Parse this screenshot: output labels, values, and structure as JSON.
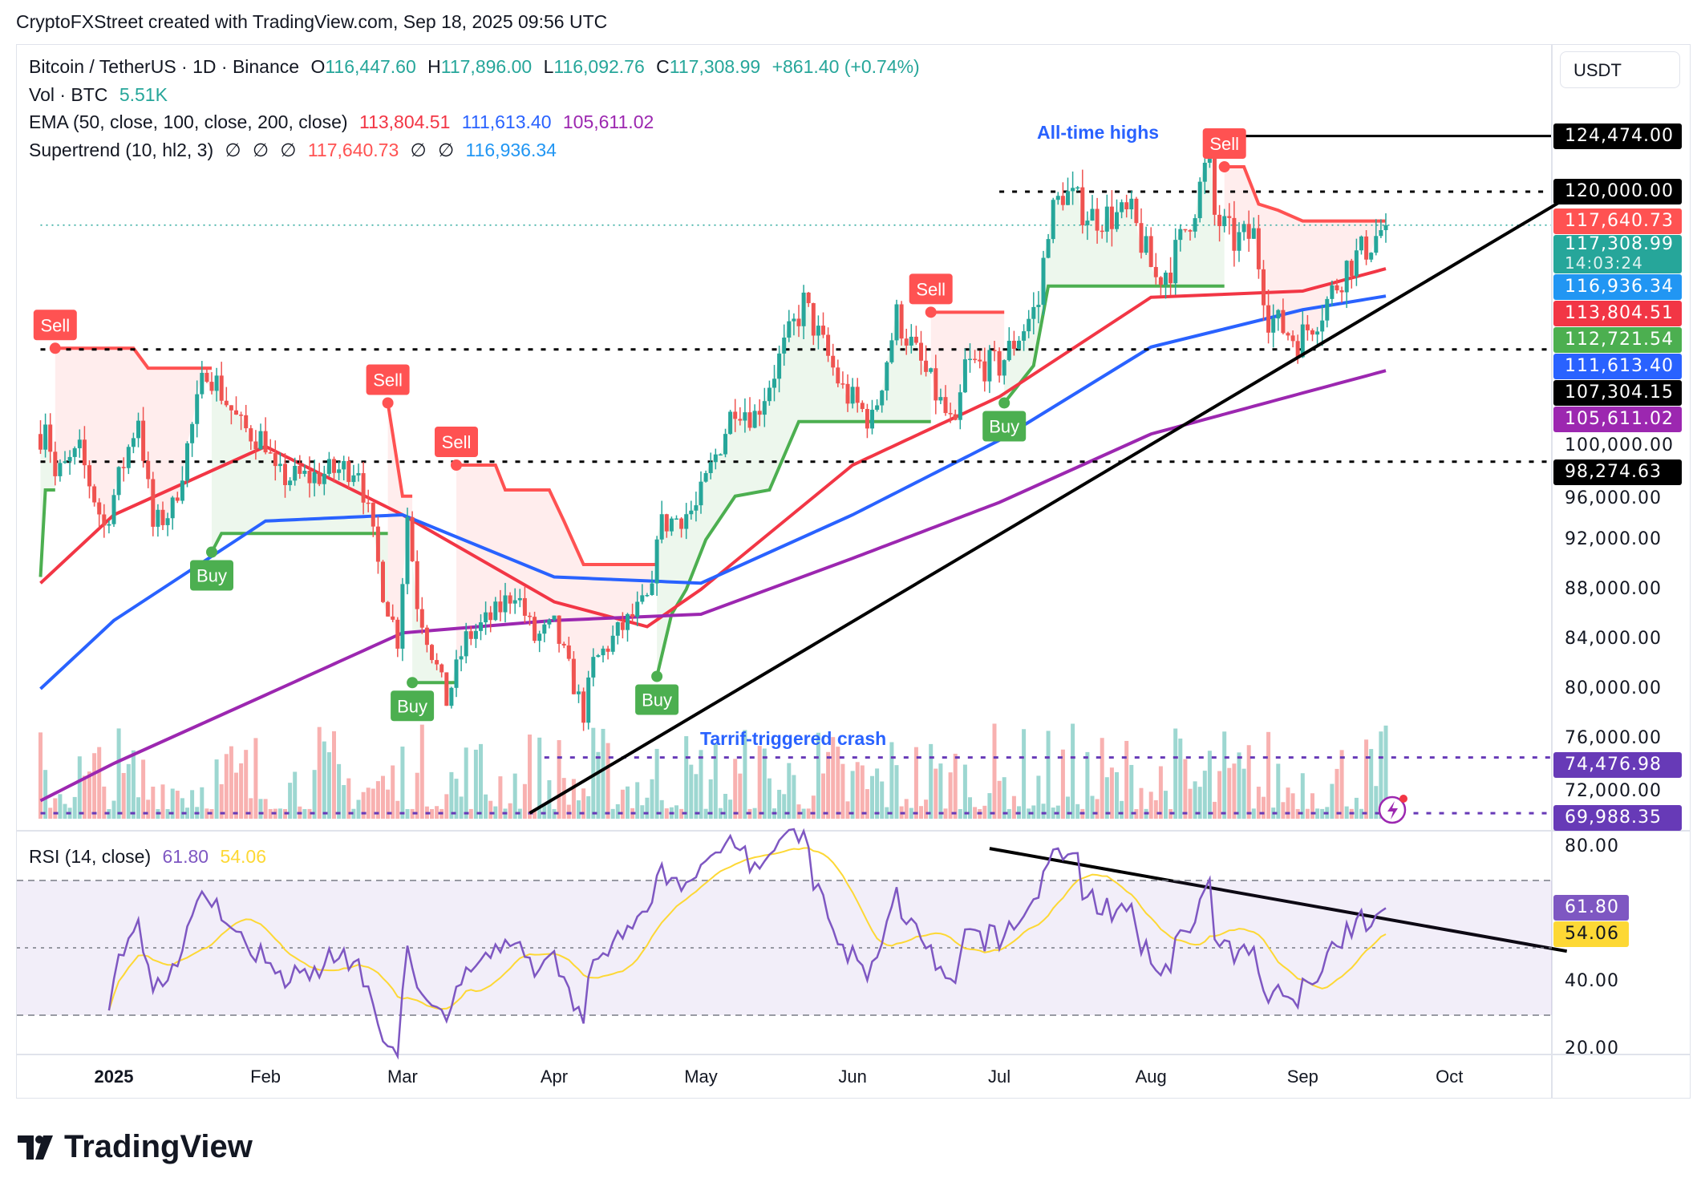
{
  "credit": "CryptoFXStreet created with TradingView.com, Sep 18, 2025 09:56 UTC",
  "legend": {
    "symbol": "Bitcoin / TetherUS · 1D · Binance",
    "o_label": "O",
    "o": "116,447.60",
    "h_label": "H",
    "h": "117,896.00",
    "l_label": "L",
    "l": "116,092.76",
    "c_label": "C",
    "c": "117,308.99",
    "change": "+861.40 (+0.74%)",
    "vol_label": "Vol · BTC",
    "vol": "5.51K",
    "ema_label": "EMA (50, close, 100, close, 200, close)",
    "ema50": "113,804.51",
    "ema100": "111,613.40",
    "ema200": "105,611.02",
    "st_label": "Supertrend (10, hl2, 3)",
    "st_na": "∅",
    "st_down": "117,640.73",
    "st_up": "116,936.34",
    "rsi_label": "RSI (14, close)",
    "rsi": "61.80",
    "rsi_ma": "54.06"
  },
  "currency": "USDT",
  "annotations": {
    "ath": "All-time highs",
    "crash": "Tarrif-triggered crash"
  },
  "colors": {
    "up": "#26a69a",
    "down": "#ef5350",
    "ema50": "#f23645",
    "ema100": "#2962ff",
    "ema200": "#9c27b0",
    "st_up": "#4caf50",
    "st_down": "#ff5252",
    "rsi": "#7e57c2",
    "rsi_ma": "#fdd835",
    "level_purple": "#673ab7"
  },
  "price_axis": {
    "ticks": [
      "100,000.00",
      "96,000.00",
      "92,000.00",
      "88,000.00",
      "84,000.00",
      "80,000.00",
      "76,000.00",
      "72,000.00"
    ],
    "tick_values": [
      100000,
      96000,
      92000,
      88000,
      84000,
      80000,
      76000,
      72000
    ],
    "badges": [
      {
        "text": "124,474.00",
        "value": 124474,
        "bg": "#000000",
        "fg": "#ffffff"
      },
      {
        "text": "120,000.00",
        "value": 120000,
        "bg": "#000000",
        "fg": "#ffffff"
      },
      {
        "text": "117,640.73",
        "value": 117640.73,
        "bg": "#ff5252",
        "fg": "#ffffff"
      },
      {
        "text": "117,308.99",
        "value": 117308.99,
        "bg": "#26a69a",
        "fg": "#ffffff",
        "sub": "14:03:24"
      },
      {
        "text": "116,936.34",
        "value": 116936.34,
        "bg": "#2196f3",
        "fg": "#ffffff"
      },
      {
        "text": "113,804.51",
        "value": 113804.51,
        "bg": "#f23645",
        "fg": "#ffffff"
      },
      {
        "text": "112,721.54",
        "value": 112721.54,
        "bg": "#4caf50",
        "fg": "#ffffff"
      },
      {
        "text": "111,613.40",
        "value": 111613.4,
        "bg": "#2962ff",
        "fg": "#ffffff"
      },
      {
        "text": "107,304.15",
        "value": 107304.15,
        "bg": "#000000",
        "fg": "#ffffff"
      },
      {
        "text": "105,611.02",
        "value": 105611.02,
        "bg": "#9c27b0",
        "fg": "#ffffff"
      },
      {
        "text": "98,274.63",
        "value": 98274.63,
        "bg": "#000000",
        "fg": "#ffffff"
      },
      {
        "text": "74,476.98",
        "value": 74476.98,
        "bg": "#673ab7",
        "fg": "#ffffff"
      },
      {
        "text": "69,988.35",
        "value": 69988.35,
        "bg": "#673ab7",
        "fg": "#ffffff"
      }
    ]
  },
  "rsi_axis": {
    "ticks": [
      "80.00",
      "40.00",
      "20.00"
    ],
    "tick_values": [
      80,
      40,
      20
    ]
  },
  "time_axis": [
    {
      "text": "2025",
      "date": "2025-01-01",
      "bold": true
    },
    {
      "text": "Feb",
      "date": "2025-02-01"
    },
    {
      "text": "Mar",
      "date": "2025-03-01"
    },
    {
      "text": "Apr",
      "date": "2025-04-01"
    },
    {
      "text": "May",
      "date": "2025-05-01"
    },
    {
      "text": "Jun",
      "date": "2025-06-01"
    },
    {
      "text": "Jul",
      "date": "2025-07-01"
    },
    {
      "text": "Aug",
      "date": "2025-08-01"
    },
    {
      "text": "Sep",
      "date": "2025-09-01"
    },
    {
      "text": "Oct",
      "date": "2025-10-01"
    }
  ],
  "logo": "TradingView",
  "chart_data": {
    "type": "candlestick",
    "symbol": "BTCUSDT",
    "interval": "1D",
    "ylim": [
      68000,
      131000
    ],
    "rsi_ylim": [
      17,
      85
    ],
    "rsi_bands": [
      70,
      30
    ],
    "close_keypoints": [
      [
        "2024-12-17",
        100500
      ],
      [
        "2024-12-18",
        102000
      ],
      [
        "2024-12-20",
        97000
      ],
      [
        "2024-12-25",
        99000
      ],
      [
        "2024-12-30",
        93000
      ],
      [
        "2025-01-06",
        102000
      ],
      [
        "2025-01-09",
        93000
      ],
      [
        "2025-01-13",
        94500
      ],
      [
        "2025-01-20",
        106000
      ],
      [
        "2025-01-27",
        101000
      ],
      [
        "2025-02-01",
        100000
      ],
      [
        "2025-02-03",
        97000
      ],
      [
        "2025-02-10",
        97000
      ],
      [
        "2025-02-20",
        98000
      ],
      [
        "2025-02-25",
        88000
      ],
      [
        "2025-02-28",
        84000
      ],
      [
        "2025-03-02",
        94000
      ],
      [
        "2025-03-04",
        87000
      ],
      [
        "2025-03-10",
        79000
      ],
      [
        "2025-03-14",
        84000
      ],
      [
        "2025-03-20",
        86000
      ],
      [
        "2025-03-24",
        88000
      ],
      [
        "2025-03-28",
        84000
      ],
      [
        "2025-04-01",
        85000
      ],
      [
        "2025-04-07",
        78000
      ],
      [
        "2025-04-09",
        82000
      ],
      [
        "2025-04-14",
        84500
      ],
      [
        "2025-04-21",
        87500
      ],
      [
        "2025-04-22",
        93000
      ],
      [
        "2025-04-30",
        94500
      ],
      [
        "2025-05-08",
        103000
      ],
      [
        "2025-05-12",
        102000
      ],
      [
        "2025-05-22",
        111000
      ],
      [
        "2025-05-30",
        104000
      ],
      [
        "2025-06-05",
        101500
      ],
      [
        "2025-06-10",
        110000
      ],
      [
        "2025-06-17",
        104500
      ],
      [
        "2025-06-22",
        100500
      ],
      [
        "2025-06-24",
        106000
      ],
      [
        "2025-07-01",
        106000
      ],
      [
        "2025-07-09",
        111000
      ],
      [
        "2025-07-11",
        117500
      ],
      [
        "2025-07-14",
        120000
      ],
      [
        "2025-07-20",
        118000
      ],
      [
        "2025-07-28",
        118000
      ],
      [
        "2025-08-02",
        113000
      ],
      [
        "2025-08-05",
        114000
      ],
      [
        "2025-08-10",
        119000
      ],
      [
        "2025-08-13",
        123000
      ],
      [
        "2025-08-14",
        118000
      ],
      [
        "2025-08-18",
        116000
      ],
      [
        "2025-08-22",
        116500
      ],
      [
        "2025-08-25",
        110000
      ],
      [
        "2025-08-31",
        108000
      ],
      [
        "2025-09-05",
        110500
      ],
      [
        "2025-09-10",
        114000
      ],
      [
        "2025-09-14",
        115500
      ],
      [
        "2025-09-18",
        117309
      ]
    ],
    "ema": [
      {
        "name": "EMA 50",
        "color": "#f23645",
        "points": [
          [
            "2024-12-17",
            88500
          ],
          [
            "2025-01-01",
            94000
          ],
          [
            "2025-02-01",
            99500
          ],
          [
            "2025-03-01",
            94000
          ],
          [
            "2025-04-01",
            87000
          ],
          [
            "2025-04-20",
            85000
          ],
          [
            "2025-05-01",
            88000
          ],
          [
            "2025-06-01",
            98000
          ],
          [
            "2025-07-01",
            103500
          ],
          [
            "2025-08-01",
            111500
          ],
          [
            "2025-09-01",
            112000
          ],
          [
            "2025-09-18",
            113800
          ]
        ]
      },
      {
        "name": "EMA 100",
        "color": "#2962ff",
        "points": [
          [
            "2024-12-17",
            80000
          ],
          [
            "2025-01-01",
            85500
          ],
          [
            "2025-02-01",
            93500
          ],
          [
            "2025-03-01",
            94000
          ],
          [
            "2025-04-01",
            89000
          ],
          [
            "2025-05-01",
            88500
          ],
          [
            "2025-06-01",
            94000
          ],
          [
            "2025-07-01",
            100000
          ],
          [
            "2025-08-01",
            107500
          ],
          [
            "2025-09-01",
            110500
          ],
          [
            "2025-09-18",
            111600
          ]
        ]
      },
      {
        "name": "EMA 200",
        "color": "#9c27b0",
        "points": [
          [
            "2024-12-17",
            71000
          ],
          [
            "2025-01-01",
            74000
          ],
          [
            "2025-02-01",
            79500
          ],
          [
            "2025-03-01",
            84500
          ],
          [
            "2025-04-01",
            85500
          ],
          [
            "2025-05-01",
            86000
          ],
          [
            "2025-06-01",
            90500
          ],
          [
            "2025-07-01",
            95000
          ],
          [
            "2025-08-01",
            100500
          ],
          [
            "2025-09-01",
            103800
          ],
          [
            "2025-09-18",
            105600
          ]
        ]
      }
    ],
    "supertrend": [
      {
        "trend": "up",
        "points": [
          [
            "2024-12-17",
            89000
          ],
          [
            "2024-12-18",
            96000
          ],
          [
            "2024-12-20",
            96000
          ]
        ]
      },
      {
        "trend": "down",
        "points": [
          [
            "2024-12-20",
            107400
          ],
          [
            "2025-01-05",
            107400
          ],
          [
            "2025-01-08",
            105800
          ],
          [
            "2025-01-21",
            105800
          ]
        ]
      },
      {
        "trend": "up",
        "points": [
          [
            "2025-01-21",
            91000
          ],
          [
            "2025-01-23",
            92500
          ],
          [
            "2025-02-26",
            92500
          ]
        ]
      },
      {
        "trend": "down",
        "points": [
          [
            "2025-02-26",
            103000
          ],
          [
            "2025-03-01",
            95500
          ],
          [
            "2025-03-03",
            95500
          ]
        ]
      },
      {
        "trend": "up",
        "points": [
          [
            "2025-03-03",
            80500
          ],
          [
            "2025-03-12",
            80500
          ]
        ]
      },
      {
        "trend": "down",
        "points": [
          [
            "2025-03-12",
            98000
          ],
          [
            "2025-03-20",
            98000
          ],
          [
            "2025-03-22",
            96000
          ],
          [
            "2025-03-31",
            96000
          ],
          [
            "2025-04-03",
            93500
          ],
          [
            "2025-04-07",
            90000
          ],
          [
            "2025-04-22",
            90000
          ]
        ]
      },
      {
        "trend": "up",
        "points": [
          [
            "2025-04-22",
            81000
          ],
          [
            "2025-04-25",
            86000
          ],
          [
            "2025-04-28",
            88000
          ],
          [
            "2025-05-02",
            92000
          ],
          [
            "2025-05-08",
            95500
          ],
          [
            "2025-05-15",
            96000
          ],
          [
            "2025-05-21",
            101500
          ],
          [
            "2025-06-17",
            101500
          ]
        ]
      },
      {
        "trend": "down",
        "points": [
          [
            "2025-06-17",
            110300
          ],
          [
            "2025-07-02",
            110300
          ]
        ]
      },
      {
        "trend": "up",
        "points": [
          [
            "2025-07-02",
            103000
          ],
          [
            "2025-07-08",
            106000
          ],
          [
            "2025-07-11",
            112400
          ],
          [
            "2025-08-16",
            112400
          ]
        ]
      },
      {
        "trend": "down",
        "points": [
          [
            "2025-08-16",
            122000
          ],
          [
            "2025-08-20",
            122000
          ],
          [
            "2025-08-23",
            119000
          ],
          [
            "2025-08-27",
            118500
          ],
          [
            "2025-09-01",
            117640
          ],
          [
            "2025-09-18",
            117640
          ]
        ]
      }
    ],
    "signals": [
      {
        "type": "sell",
        "label": "Sell",
        "date": "2024-12-20"
      },
      {
        "type": "buy",
        "label": "Buy",
        "date": "2025-01-21"
      },
      {
        "type": "sell",
        "label": "Sell",
        "date": "2025-02-26"
      },
      {
        "type": "buy",
        "label": "Buy",
        "date": "2025-03-03"
      },
      {
        "type": "sell",
        "label": "Sell",
        "date": "2025-03-12"
      },
      {
        "type": "buy",
        "label": "Buy",
        "date": "2025-04-22"
      },
      {
        "type": "sell",
        "label": "Sell",
        "date": "2025-06-17"
      },
      {
        "type": "buy",
        "label": "Buy",
        "date": "2025-07-02"
      },
      {
        "type": "sell",
        "label": "Sell",
        "date": "2025-08-16"
      }
    ],
    "levels": [
      {
        "value": 124474,
        "from": "2025-08-14",
        "style": "solid",
        "color": "#000000"
      },
      {
        "value": 120000,
        "from": "2025-07-01",
        "style": "dotted",
        "color": "#000000"
      },
      {
        "value": 107304.15,
        "from": "2024-12-17",
        "style": "dotted",
        "color": "#000000"
      },
      {
        "value": 98274.63,
        "from": "2024-12-17",
        "style": "dotted",
        "color": "#000000"
      },
      {
        "value": 74476.98,
        "from": "2025-03-30",
        "style": "dotted",
        "color": "#673ab7"
      },
      {
        "value": 69988.35,
        "from": "2024-12-17",
        "style": "dotted",
        "color": "#673ab7"
      },
      {
        "value": 117308.99,
        "from": "2024-12-17",
        "style": "last-price",
        "color": "#26a69a"
      }
    ],
    "trendlines": [
      {
        "pane": "price",
        "from": [
          "2025-03-27",
          70000
        ],
        "to": [
          "2025-10-25",
          119500
        ]
      },
      {
        "pane": "rsi",
        "from": [
          "2025-06-29",
          79.5
        ],
        "to": [
          "2025-10-25",
          49
        ]
      }
    ]
  }
}
